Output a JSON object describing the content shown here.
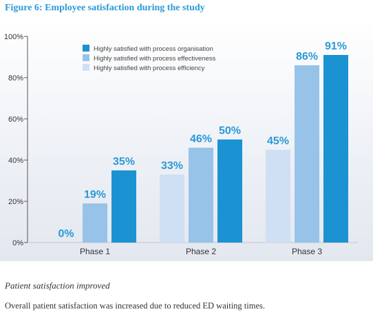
{
  "figure_title": "Figure 6: Employee satisfaction during the study",
  "caption": {
    "heading": "Patient satisfaction improved",
    "body": "Overall patient satisfaction was increased due to reduced ED waiting times."
  },
  "chart_data": {
    "type": "bar",
    "title": "Figure 6: Employee satisfaction during the study",
    "categories": [
      "Phase 1",
      "Phase 2",
      "Phase 3"
    ],
    "series": [
      {
        "name": "Highly satisfied with process efficiency",
        "values": [
          0,
          33,
          45
        ],
        "color": "#cfe0f4"
      },
      {
        "name": "Highly satisfied with process effectiveness",
        "values": [
          19,
          46,
          86
        ],
        "color": "#98c3e9"
      },
      {
        "name": "Highly satisfied with process organisation",
        "values": [
          35,
          50,
          91
        ],
        "color": "#1b92d2"
      }
    ],
    "legend_order": [
      2,
      1,
      0
    ],
    "y_ticks": [
      "0%",
      "20%",
      "40%",
      "60%",
      "80%",
      "100%"
    ],
    "ylim": [
      0,
      100
    ],
    "value_labels": [
      [
        "0%",
        "33%",
        "45%"
      ],
      [
        "19%",
        "46%",
        "86%"
      ],
      [
        "35%",
        "50%",
        "91%"
      ]
    ],
    "label_color": "#2a9ad6",
    "legend_position": "top-left",
    "grid": false
  }
}
